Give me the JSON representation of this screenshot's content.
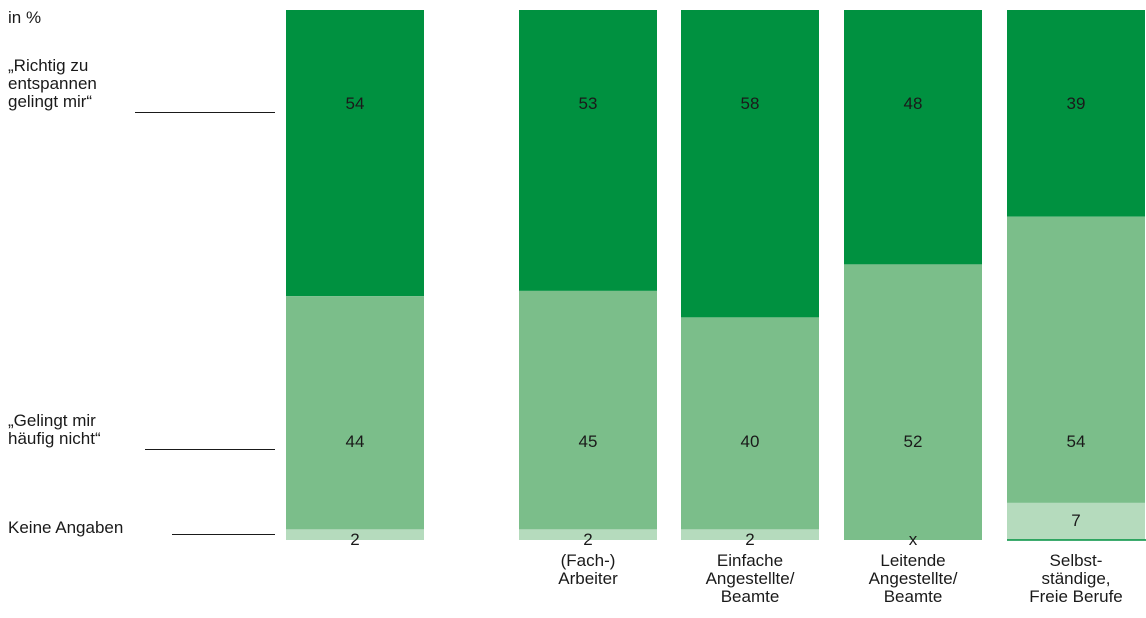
{
  "chart_data": {
    "type": "bar",
    "stacked": true,
    "unit_label": "in %",
    "categories": [
      "",
      "(Fach-)\nArbeiter",
      "Einfache\nAngestellte/\nBeamte",
      "Leitende\nAngestellte/\nBeamte",
      "Selbst-\nständige,\nFreie Berufe"
    ],
    "series": [
      {
        "name": "„Richtig zu\nentspannen\ngelingt mir“",
        "color": "#009140",
        "values": [
          54,
          53,
          58,
          48,
          39
        ],
        "labels": [
          "54",
          "53",
          "58",
          "48",
          "39"
        ]
      },
      {
        "name": "„Gelingt mir\nhäufig nicht“",
        "color": "#7bbe8a",
        "values": [
          44,
          45,
          40,
          52,
          54
        ],
        "labels": [
          "44",
          "45",
          "40",
          "52",
          "54"
        ]
      },
      {
        "name": "Keine Angaben",
        "color": "#b5dbbd",
        "values": [
          2,
          2,
          2,
          0,
          7
        ],
        "labels": [
          "2",
          "2",
          "2",
          "x",
          "7"
        ]
      }
    ],
    "ylim": [
      0,
      100
    ]
  }
}
